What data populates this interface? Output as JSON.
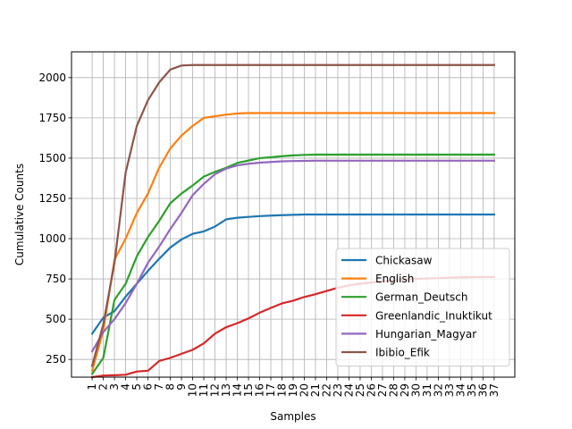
{
  "chart_data": {
    "type": "line",
    "title": "",
    "xlabel": "Samples",
    "ylabel": "Cumulative Counts",
    "x": [
      1,
      2,
      3,
      4,
      5,
      6,
      7,
      8,
      9,
      10,
      11,
      12,
      13,
      14,
      15,
      16,
      17,
      18,
      19,
      20,
      21,
      22,
      23,
      24,
      25,
      26,
      27,
      28,
      29,
      30,
      31,
      32,
      33,
      34,
      35,
      36,
      37
    ],
    "ylim": [
      140,
      2160
    ],
    "yticks": [
      250,
      500,
      750,
      1000,
      1250,
      1500,
      1750,
      2000
    ],
    "ytick_labels": [
      "250",
      "500",
      "750",
      "1000",
      "1250",
      "1500",
      "1750",
      "2000"
    ],
    "grid": true,
    "legend_position": "lower-right",
    "series": [
      {
        "name": "Chickasaw",
        "color": "#1f77b4",
        "values": [
          410,
          510,
          550,
          640,
          720,
          800,
          875,
          945,
          995,
          1030,
          1045,
          1075,
          1120,
          1130,
          1135,
          1140,
          1143,
          1146,
          1148,
          1150,
          1150,
          1150,
          1150,
          1150,
          1150,
          1150,
          1150,
          1150,
          1150,
          1150,
          1150,
          1150,
          1150,
          1150,
          1150,
          1150,
          1150
        ]
      },
      {
        "name": "English",
        "color": "#ff7f0e",
        "values": [
          180,
          430,
          870,
          1000,
          1160,
          1280,
          1440,
          1560,
          1640,
          1700,
          1750,
          1760,
          1770,
          1777,
          1780,
          1780,
          1780,
          1780,
          1780,
          1780,
          1780,
          1780,
          1780,
          1780,
          1780,
          1780,
          1780,
          1780,
          1780,
          1780,
          1780,
          1780,
          1780,
          1780,
          1780,
          1780,
          1780
        ]
      },
      {
        "name": "German_Deutsch",
        "color": "#2ca02c",
        "values": [
          160,
          260,
          620,
          720,
          890,
          1010,
          1110,
          1220,
          1280,
          1330,
          1385,
          1415,
          1440,
          1470,
          1485,
          1500,
          1505,
          1512,
          1517,
          1520,
          1522,
          1522,
          1522,
          1522,
          1522,
          1522,
          1522,
          1522,
          1522,
          1522,
          1522,
          1522,
          1522,
          1522,
          1522,
          1522,
          1522
        ]
      },
      {
        "name": "Greenlandic_Inuktikut",
        "color": "#d62728",
        "values": [
          140,
          150,
          152,
          155,
          175,
          180,
          240,
          260,
          285,
          310,
          350,
          410,
          450,
          475,
          505,
          540,
          570,
          598,
          615,
          638,
          655,
          675,
          695,
          710,
          720,
          728,
          735,
          740,
          745,
          750,
          753,
          755,
          758,
          760,
          761,
          762,
          762
        ]
      },
      {
        "name": "Hungarian_Magyar",
        "color": "#9467bd",
        "values": [
          300,
          420,
          500,
          600,
          720,
          850,
          950,
          1060,
          1160,
          1270,
          1340,
          1400,
          1435,
          1455,
          1465,
          1472,
          1476,
          1480,
          1482,
          1483,
          1484,
          1484,
          1484,
          1484,
          1484,
          1484,
          1484,
          1484,
          1484,
          1484,
          1484,
          1484,
          1484,
          1484,
          1484,
          1484,
          1484
        ]
      },
      {
        "name": "Ibibio_Efik",
        "color": "#8c564b",
        "values": [
          210,
          470,
          850,
          1410,
          1700,
          1860,
          1970,
          2050,
          2075,
          2078,
          2078,
          2078,
          2078,
          2078,
          2078,
          2078,
          2078,
          2078,
          2078,
          2078,
          2078,
          2078,
          2078,
          2078,
          2078,
          2078,
          2078,
          2078,
          2078,
          2078,
          2078,
          2078,
          2078,
          2078,
          2078,
          2078,
          2078
        ]
      }
    ]
  }
}
